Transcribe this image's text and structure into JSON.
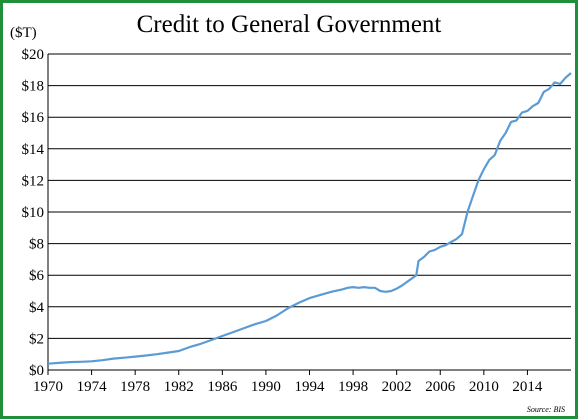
{
  "chart_data": {
    "type": "line",
    "title": "Credit to General Government",
    "y_unit_label": "($T)",
    "source": "Source: BIS",
    "xlim": [
      1970,
      2018
    ],
    "ylim": [
      0,
      20
    ],
    "x_ticks": [
      1970,
      1974,
      1978,
      1982,
      1986,
      1990,
      1994,
      1998,
      2002,
      2006,
      2010,
      2014
    ],
    "y_ticks": [
      0,
      2,
      4,
      6,
      8,
      10,
      12,
      14,
      16,
      18,
      20
    ],
    "y_tick_labels": [
      "$0",
      "$2",
      "$4",
      "$6",
      "$8",
      "$10",
      "$12",
      "$14",
      "$16",
      "$18",
      "$20"
    ],
    "grid": "horizontal",
    "line_color": "#5b9bd5",
    "frame_color": "#1f8f3a",
    "series": [
      {
        "x": [
          1970,
          1971,
          1972,
          1973,
          1974,
          1975,
          1976,
          1977,
          1978,
          1979,
          1980,
          1981,
          1982,
          1983,
          1984,
          1985,
          1986,
          1987,
          1988,
          1989,
          1990,
          1991,
          1992,
          1993,
          1994,
          1995,
          1996,
          1997,
          1997.5,
          1998,
          1998.5,
          1999,
          1999.5,
          2000,
          2000.5,
          2001,
          2001.5,
          2002,
          2002.5,
          2003,
          2003.5,
          2003.8,
          2004,
          2004.5,
          2005,
          2005.5,
          2006,
          2006.5,
          2007,
          2007.5,
          2008,
          2008.5,
          2009,
          2009.5,
          2010,
          2010.5,
          2011,
          2011.5,
          2012,
          2012.5,
          2013,
          2013.5,
          2014,
          2014.5,
          2015,
          2015.5,
          2016,
          2016.5,
          2017,
          2017.5,
          2018
        ],
        "values": [
          0.4,
          0.45,
          0.5,
          0.52,
          0.55,
          0.62,
          0.72,
          0.78,
          0.85,
          0.92,
          1.0,
          1.1,
          1.2,
          1.45,
          1.65,
          1.9,
          2.15,
          2.4,
          2.65,
          2.9,
          3.1,
          3.45,
          3.9,
          4.25,
          4.55,
          4.75,
          4.95,
          5.1,
          5.2,
          5.25,
          5.2,
          5.25,
          5.2,
          5.2,
          5.0,
          4.95,
          5.0,
          5.15,
          5.35,
          5.6,
          5.85,
          6.0,
          6.9,
          7.15,
          7.5,
          7.6,
          7.8,
          7.9,
          8.1,
          8.3,
          8.6,
          10.0,
          11.0,
          12.0,
          12.7,
          13.3,
          13.6,
          14.5,
          15.0,
          15.7,
          15.8,
          16.3,
          16.4,
          16.7,
          16.9,
          17.6,
          17.8,
          18.2,
          18.1,
          18.5,
          18.8
        ]
      }
    ]
  }
}
